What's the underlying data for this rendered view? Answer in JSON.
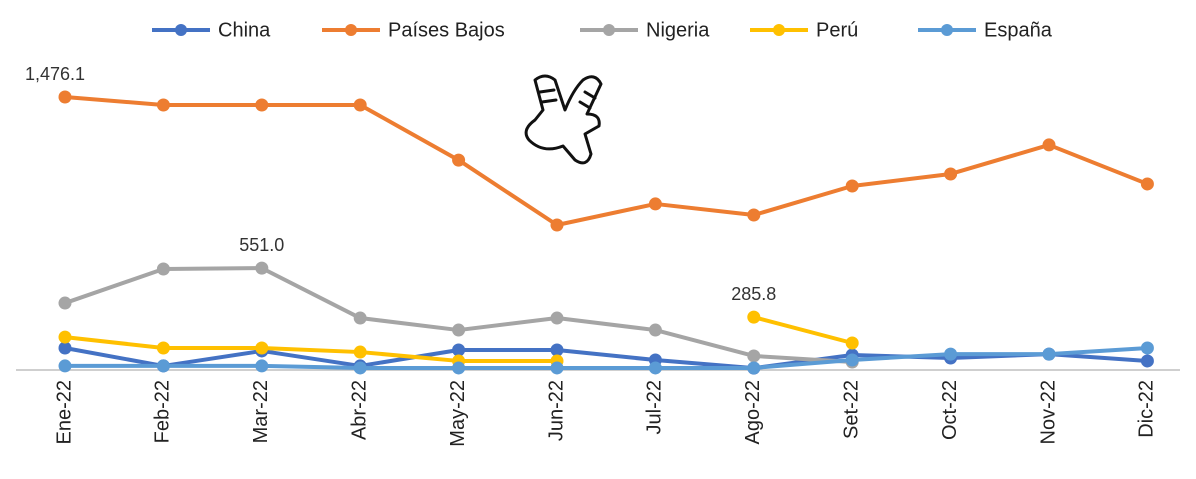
{
  "chart_data": {
    "type": "line",
    "categories": [
      "Ene-22",
      "Feb-22",
      "Mar-22",
      "Abr-22",
      "May-22",
      "Jun-22",
      "Jul-22",
      "Ago-22",
      "Set-22",
      "Oct-22",
      "Nov-22",
      "Dic-22"
    ],
    "series": [
      {
        "name": "China",
        "color": "#4472c4",
        "values": [
          119,
          22,
          103,
          22,
          108,
          108,
          54,
          10,
          81,
          65,
          86,
          49
        ]
      },
      {
        "name": "Países Bajos",
        "color": "#ed7d31",
        "values": [
          1476.1,
          1433,
          1433,
          1433,
          1135,
          784,
          898,
          838,
          995,
          1060,
          1217,
          1006
        ],
        "value_labels": [
          "1,476.1",
          null,
          null,
          null,
          null,
          null,
          null,
          null,
          null,
          null,
          null,
          null
        ]
      },
      {
        "name": "Nigeria",
        "color": "#a5a5a5",
        "values": [
          362,
          546,
          551.0,
          281,
          216,
          281,
          216,
          76,
          43,
          null,
          null,
          null
        ],
        "value_labels": [
          null,
          null,
          "551.0",
          null,
          null,
          null,
          null,
          null,
          null,
          null,
          null,
          null
        ]
      },
      {
        "name": "Perú",
        "color": "#ffc000",
        "values": [
          178,
          119,
          119,
          97,
          49,
          49,
          null,
          285.8,
          146,
          null,
          null,
          null
        ],
        "value_labels": [
          null,
          null,
          null,
          null,
          null,
          null,
          null,
          "285.8",
          null,
          null,
          null,
          null
        ]
      },
      {
        "name": "España",
        "color": "#5b9bd5",
        "values": [
          22,
          22,
          22,
          11,
          11,
          11,
          11,
          11,
          54,
          86,
          86,
          119
        ]
      }
    ],
    "ylim": [
      0,
      1500
    ]
  }
}
